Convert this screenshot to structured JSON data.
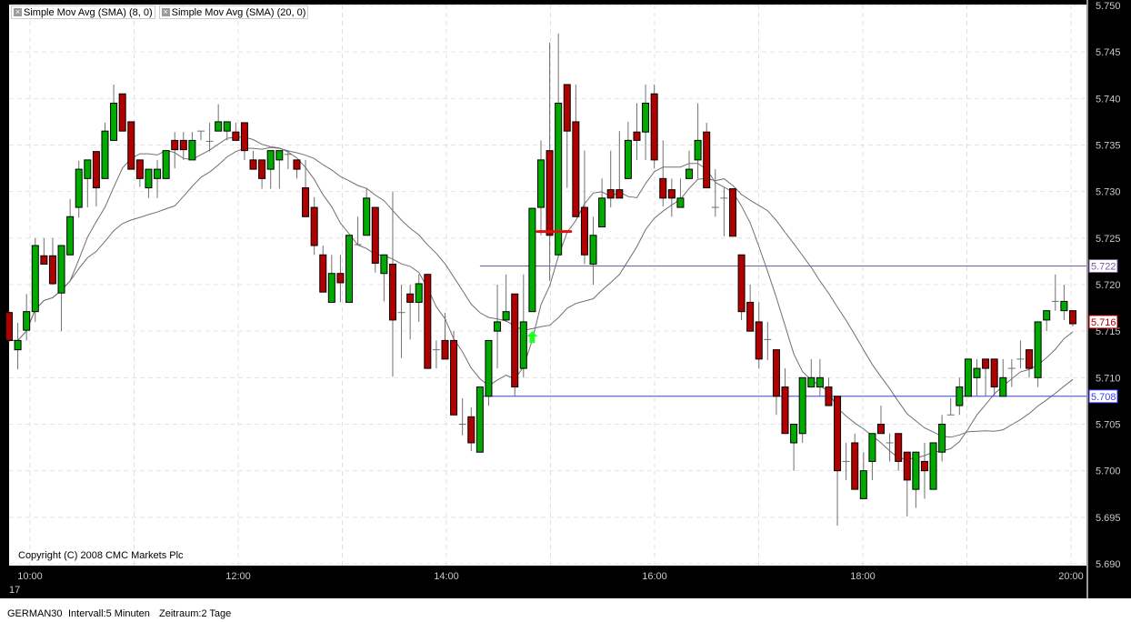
{
  "legend": [
    {
      "label": "Simple Mov Avg (SMA) (8, 0)",
      "icon": "close-icon"
    },
    {
      "label": "Simple Mov Avg (SMA) (20, 0)",
      "icon": "close-icon"
    }
  ],
  "copyright": "Copyright (C) 2008 CMC Markets Plc",
  "status": {
    "symbol": "GERMAN30",
    "interval": "Intervall:5 Minuten",
    "period": "Zeitraum:2 Tage"
  },
  "colors": {
    "up": "#00aa00",
    "down": "#b00000",
    "sma": "#707070",
    "level_purple": "#7a5aa0",
    "level_blue": "#3a3aff",
    "marker_red": "#e01010",
    "arrow_green": "#22ff22"
  },
  "chart_data": {
    "type": "candlestick",
    "title": "",
    "start_time": "09:50",
    "interval_minutes": 5,
    "ylim": [
      5.69,
      5.75
    ],
    "y_ticks": [
      "5.750",
      "5.745",
      "5.740",
      "5.735",
      "5.730",
      "5.725",
      "5.720",
      "5.715",
      "5.710",
      "5.705",
      "5.700",
      "5.695",
      "5.690"
    ],
    "x_ticks": [
      "10:00",
      "12:00",
      "14:00",
      "16:00",
      "18:00",
      "20:00"
    ],
    "x_hour_grid": [
      "10:00",
      "11:00",
      "12:00",
      "13:00",
      "14:00",
      "15:00",
      "16:00",
      "17:00",
      "18:00",
      "19:00",
      "20:00"
    ],
    "date_label": "17",
    "grid": true,
    "ohlc_order": [
      "open",
      "high",
      "low",
      "close"
    ],
    "candles": [
      [
        5.717,
        5.7172,
        5.7138,
        5.714
      ],
      [
        5.713,
        5.7159,
        5.7109,
        5.714
      ],
      [
        5.7151,
        5.719,
        5.714,
        5.7171
      ],
      [
        5.7171,
        5.725,
        5.716,
        5.7242
      ],
      [
        5.7231,
        5.725,
        5.7222,
        5.7222
      ],
      [
        5.7231,
        5.725,
        5.72,
        5.7201
      ],
      [
        5.7191,
        5.7242,
        5.715,
        5.7242
      ],
      [
        5.7232,
        5.7292,
        5.7232,
        5.7273
      ],
      [
        5.7283,
        5.7333,
        5.7272,
        5.7324
      ],
      [
        5.7314,
        5.7334,
        5.7283,
        5.7334
      ],
      [
        5.7343,
        5.7343,
        5.7284,
        5.7304
      ],
      [
        5.7314,
        5.7374,
        5.7314,
        5.7365
      ],
      [
        5.7355,
        5.7415,
        5.7355,
        5.7395
      ],
      [
        5.7405,
        5.7405,
        5.7365,
        5.7365
      ],
      [
        5.7375,
        5.7375,
        5.7324,
        5.7324
      ],
      [
        5.7334,
        5.7334,
        5.7305,
        5.7314
      ],
      [
        5.7304,
        5.7324,
        5.7293,
        5.7324
      ],
      [
        5.7314,
        5.7334,
        5.7293,
        5.7324
      ],
      [
        5.7314,
        5.7344,
        5.7314,
        5.7344
      ],
      [
        5.7355,
        5.7364,
        5.7325,
        5.7345
      ],
      [
        5.7355,
        5.7364,
        5.7334,
        5.7345
      ],
      [
        5.7334,
        5.7364,
        5.7334,
        5.7355
      ],
      [
        5.7365,
        5.7365,
        5.7355,
        5.7365
      ],
      [
        5.7354,
        5.7374,
        5.7343,
        5.7354
      ],
      [
        5.7365,
        5.7394,
        5.7365,
        5.7375
      ],
      [
        5.7365,
        5.7375,
        5.7355,
        5.7375
      ],
      [
        5.7364,
        5.7374,
        5.7355,
        5.7355
      ],
      [
        5.7374,
        5.7374,
        5.7334,
        5.7344
      ],
      [
        5.7334,
        5.7344,
        5.7324,
        5.7324
      ],
      [
        5.7334,
        5.7334,
        5.7303,
        5.7314
      ],
      [
        5.7324,
        5.7344,
        5.7303,
        5.7344
      ],
      [
        5.7334,
        5.7344,
        5.7303,
        5.7344
      ],
      [
        5.734,
        5.7344,
        5.7324,
        5.734
      ],
      [
        5.7334,
        5.7334,
        5.7314,
        5.7324
      ],
      [
        5.7304,
        5.7334,
        5.7273,
        5.7273
      ],
      [
        5.7283,
        5.7294,
        5.7232,
        5.7242
      ],
      [
        5.7232,
        5.7242,
        5.7192,
        5.7192
      ],
      [
        5.7181,
        5.7232,
        5.7181,
        5.7212
      ],
      [
        5.7212,
        5.7232,
        5.7181,
        5.7202
      ],
      [
        5.7181,
        5.7253,
        5.7181,
        5.7253
      ],
      [
        5.7243,
        5.7273,
        5.7242,
        5.7243
      ],
      [
        5.7253,
        5.7304,
        5.7253,
        5.7293
      ],
      [
        5.7283,
        5.7283,
        5.7213,
        5.7223
      ],
      [
        5.7212,
        5.7232,
        5.7182,
        5.7232
      ],
      [
        5.7222,
        5.73,
        5.7101,
        5.7162
      ],
      [
        5.717,
        5.72,
        5.7121,
        5.717
      ],
      [
        5.719,
        5.72,
        5.7141,
        5.7181
      ],
      [
        5.7181,
        5.7211,
        5.716,
        5.7201
      ],
      [
        5.7211,
        5.7211,
        5.711,
        5.711
      ],
      [
        5.713,
        5.714,
        5.711,
        5.713
      ],
      [
        5.714,
        5.717,
        5.712,
        5.712
      ],
      [
        5.714,
        5.715,
        5.706,
        5.706
      ],
      [
        5.705,
        5.7078,
        5.7038,
        5.705
      ],
      [
        5.7058,
        5.7068,
        5.7021,
        5.703
      ],
      [
        5.702,
        5.709,
        5.702,
        5.709
      ],
      [
        5.708,
        5.714,
        5.707,
        5.714
      ],
      [
        5.715,
        5.72,
        5.711,
        5.716
      ],
      [
        5.7162,
        5.7211,
        5.716,
        5.7171
      ],
      [
        5.719,
        5.719,
        5.708,
        5.709
      ],
      [
        5.711,
        5.7211,
        5.71,
        5.716
      ],
      [
        5.7171,
        5.7282,
        5.7171,
        5.7282
      ],
      [
        5.7283,
        5.7355,
        5.7253,
        5.7334
      ],
      [
        5.7344,
        5.746,
        5.7204,
        5.7253
      ],
      [
        5.7232,
        5.747,
        5.7232,
        5.7395
      ],
      [
        5.7415,
        5.7415,
        5.7304,
        5.7365
      ],
      [
        5.7375,
        5.7415,
        5.7273,
        5.7273
      ],
      [
        5.7283,
        5.7344,
        5.7222,
        5.7232
      ],
      [
        5.7222,
        5.7273,
        5.72,
        5.7253
      ],
      [
        5.7262,
        5.7314,
        5.7262,
        5.7293
      ],
      [
        5.7302,
        5.7344,
        5.7283,
        5.7293
      ],
      [
        5.7302,
        5.7365,
        5.7293,
        5.7293
      ],
      [
        5.7314,
        5.7375,
        5.7314,
        5.7355
      ],
      [
        5.7364,
        5.7395,
        5.7334,
        5.7355
      ],
      [
        5.7364,
        5.7415,
        5.7334,
        5.7395
      ],
      [
        5.7405,
        5.7415,
        5.7325,
        5.7334
      ],
      [
        5.7314,
        5.7355,
        5.7284,
        5.7293
      ],
      [
        5.7302,
        5.7314,
        5.7273,
        5.7293
      ],
      [
        5.7283,
        5.7314,
        5.7283,
        5.7293
      ],
      [
        5.7314,
        5.7344,
        5.7314,
        5.7324
      ],
      [
        5.7334,
        5.7395,
        5.7314,
        5.7355
      ],
      [
        5.7364,
        5.7374,
        5.7304,
        5.7304
      ],
      [
        5.7283,
        5.7324,
        5.7273,
        5.7283
      ],
      [
        5.7293,
        5.7304,
        5.7252,
        5.7293
      ],
      [
        5.7303,
        5.7303,
        5.7252,
        5.7252
      ],
      [
        5.7232,
        5.7232,
        5.7162,
        5.7171
      ],
      [
        5.7181,
        5.72,
        5.715,
        5.715
      ],
      [
        5.716,
        5.7181,
        5.711,
        5.712
      ],
      [
        5.7141,
        5.716,
        5.7119,
        5.7141
      ],
      [
        5.713,
        5.713,
        5.706,
        5.708
      ],
      [
        5.709,
        5.711,
        5.704,
        5.704
      ],
      [
        5.703,
        5.705,
        5.7,
        5.705
      ],
      [
        5.704,
        5.71,
        5.703,
        5.71
      ],
      [
        5.709,
        5.712,
        5.709,
        5.71
      ],
      [
        5.709,
        5.712,
        5.708,
        5.71
      ],
      [
        5.709,
        5.71,
        5.707,
        5.707
      ],
      [
        5.708,
        5.708,
        5.6941,
        5.7
      ],
      [
        5.701,
        5.703,
        5.699,
        5.701
      ],
      [
        5.703,
        5.704,
        5.698,
        5.698
      ],
      [
        5.697,
        5.702,
        5.697,
        5.7
      ],
      [
        5.701,
        5.704,
        5.699,
        5.704
      ],
      [
        5.705,
        5.707,
        5.704,
        5.704
      ],
      [
        5.703,
        5.704,
        5.701,
        5.703
      ],
      [
        5.704,
        5.704,
        5.7,
        5.701
      ],
      [
        5.702,
        5.702,
        5.6951,
        5.699
      ],
      [
        5.698,
        5.702,
        5.696,
        5.702
      ],
      [
        5.701,
        5.703,
        5.697,
        5.7
      ],
      [
        5.698,
        5.703,
        5.698,
        5.703
      ],
      [
        5.702,
        5.706,
        5.701,
        5.705
      ],
      [
        5.706,
        5.7078,
        5.706,
        5.706
      ],
      [
        5.707,
        5.71,
        5.706,
        5.709
      ],
      [
        5.708,
        5.712,
        5.708,
        5.712
      ],
      [
        5.71,
        5.712,
        5.708,
        5.711
      ],
      [
        5.712,
        5.712,
        5.708,
        5.711
      ],
      [
        5.712,
        5.712,
        5.708,
        5.709
      ],
      [
        5.708,
        5.712,
        5.708,
        5.71
      ],
      [
        5.711,
        5.712,
        5.709,
        5.711
      ],
      [
        5.712,
        5.714,
        5.711,
        5.712
      ],
      [
        5.713,
        5.713,
        5.71,
        5.711
      ],
      [
        5.71,
        5.716,
        5.709,
        5.716
      ],
      [
        5.7162,
        5.7172,
        5.715,
        5.7172
      ],
      [
        5.7182,
        5.7211,
        5.7172,
        5.7182
      ],
      [
        5.7172,
        5.72,
        5.7162,
        5.7182
      ],
      [
        5.7172,
        5.7172,
        5.7155,
        5.7158
      ]
    ],
    "sma_periods": [
      8,
      20
    ],
    "levels": [
      {
        "value": 5.722,
        "label": "5.722",
        "color": "#7a5aa0",
        "from_time": "14:20"
      },
      {
        "value": 5.708,
        "label": "5.708",
        "color": "#3a3aff",
        "from_time": "14:20"
      }
    ],
    "last_price_label": "5.716",
    "markers": [
      {
        "type": "line",
        "value": 5.7257,
        "from_time": "14:55",
        "to_time": "15:10",
        "color": "#e01010"
      },
      {
        "type": "up-arrow",
        "time": "14:50",
        "value": 5.715,
        "color": "#22ff22"
      }
    ]
  }
}
